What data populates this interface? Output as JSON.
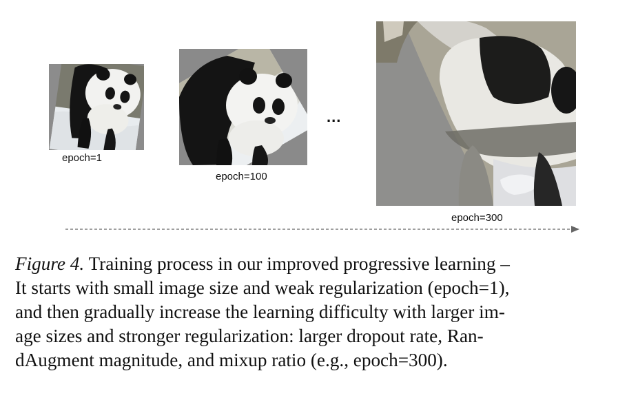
{
  "figure": {
    "panels": [
      {
        "label": "epoch=1"
      },
      {
        "label": "epoch=100"
      },
      {
        "label": "epoch=300"
      }
    ],
    "ellipsis": "...",
    "caption": {
      "figure_label": "Figure 4.",
      "lines": [
        " Training process in our improved progressive learning –",
        "It starts with small image size and weak regularization (epoch=1),",
        "and then gradually increase the learning difficulty with larger im-",
        "age sizes and stronger regularization: larger dropout rate, Ran-",
        "dAugment magnitude, and mixup ratio (e.g., epoch=300)."
      ]
    }
  }
}
